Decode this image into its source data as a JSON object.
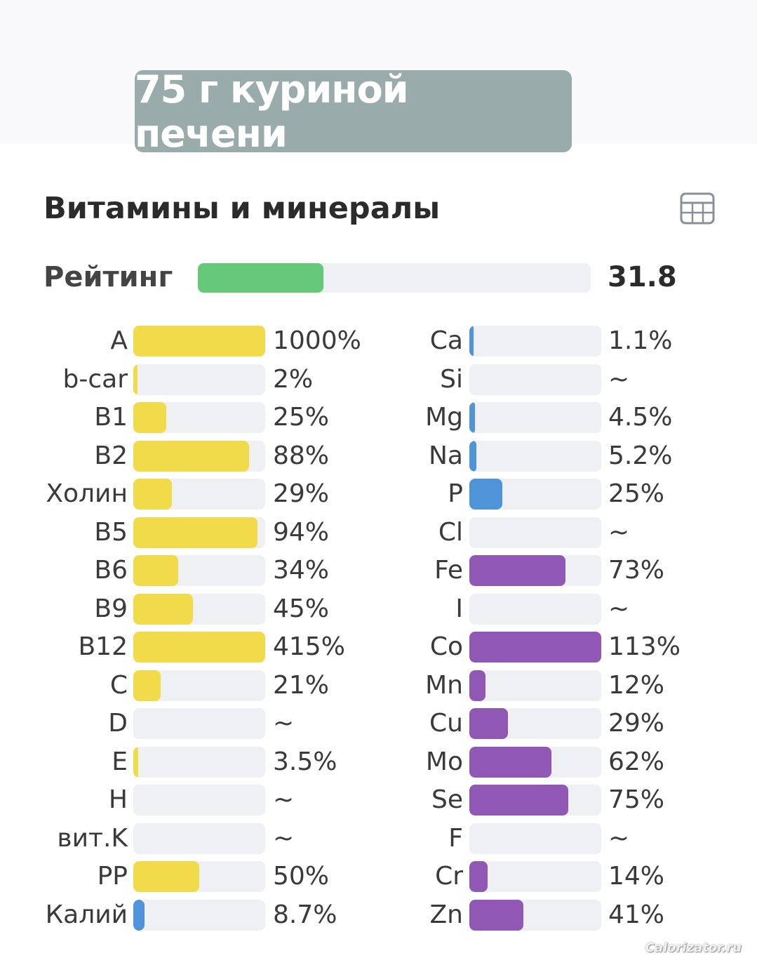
{
  "header": {
    "title": "75 г куриной печени"
  },
  "section": {
    "title": "Витамины и минералы",
    "view_icon": "table-grid-icon"
  },
  "rating": {
    "label": "Рейтинг",
    "value": 31.8,
    "value_text": "31.8",
    "fraction": 0.32,
    "color": "#66c97a"
  },
  "colors": {
    "vitamin": "#f1db4a",
    "mineral_blue": "#4f94d8",
    "mineral_purple": "#9157b4",
    "track": "#eef0f3"
  },
  "watermark": "Calorizator.ru",
  "chart_data": {
    "type": "bar",
    "title": "Витамины и минералы",
    "series": [
      {
        "group": "vitamins",
        "items": [
          {
            "name": "A",
            "percent": 1000,
            "label": "1000%",
            "color": "#f1db4a"
          },
          {
            "name": "b-car",
            "percent": 2,
            "label": "2%",
            "color": "#f1db4a"
          },
          {
            "name": "B1",
            "percent": 25,
            "label": "25%",
            "color": "#f1db4a"
          },
          {
            "name": "B2",
            "percent": 88,
            "label": "88%",
            "color": "#f1db4a"
          },
          {
            "name": "Холин",
            "percent": 29,
            "label": "29%",
            "color": "#f1db4a"
          },
          {
            "name": "B5",
            "percent": 94,
            "label": "94%",
            "color": "#f1db4a"
          },
          {
            "name": "B6",
            "percent": 34,
            "label": "34%",
            "color": "#f1db4a"
          },
          {
            "name": "B9",
            "percent": 45,
            "label": "45%",
            "color": "#f1db4a"
          },
          {
            "name": "B12",
            "percent": 415,
            "label": "415%",
            "color": "#f1db4a"
          },
          {
            "name": "C",
            "percent": 21,
            "label": "21%",
            "color": "#f1db4a"
          },
          {
            "name": "D",
            "percent": null,
            "label": "~",
            "color": "#f1db4a"
          },
          {
            "name": "E",
            "percent": 3.5,
            "label": "3.5%",
            "color": "#f1db4a"
          },
          {
            "name": "H",
            "percent": null,
            "label": "~",
            "color": "#f1db4a"
          },
          {
            "name": "вит.K",
            "percent": null,
            "label": "~",
            "color": "#f1db4a"
          },
          {
            "name": "PP",
            "percent": 50,
            "label": "50%",
            "color": "#f1db4a"
          },
          {
            "name": "Калий",
            "percent": 8.7,
            "label": "8.7%",
            "color": "#4f94d8"
          }
        ]
      },
      {
        "group": "minerals",
        "items": [
          {
            "name": "Ca",
            "percent": 1.1,
            "label": "1.1%",
            "color": "#4f94d8"
          },
          {
            "name": "Si",
            "percent": null,
            "label": "~",
            "color": "#4f94d8"
          },
          {
            "name": "Mg",
            "percent": 4.5,
            "label": "4.5%",
            "color": "#4f94d8"
          },
          {
            "name": "Na",
            "percent": 5.2,
            "label": "5.2%",
            "color": "#4f94d8"
          },
          {
            "name": "P",
            "percent": 25,
            "label": "25%",
            "color": "#4f94d8"
          },
          {
            "name": "Cl",
            "percent": null,
            "label": "~",
            "color": "#4f94d8"
          },
          {
            "name": "Fe",
            "percent": 73,
            "label": "73%",
            "color": "#9157b4"
          },
          {
            "name": "I",
            "percent": null,
            "label": "~",
            "color": "#9157b4"
          },
          {
            "name": "Co",
            "percent": 113,
            "label": "113%",
            "color": "#9157b4"
          },
          {
            "name": "Mn",
            "percent": 12,
            "label": "12%",
            "color": "#9157b4"
          },
          {
            "name": "Cu",
            "percent": 29,
            "label": "29%",
            "color": "#9157b4"
          },
          {
            "name": "Mo",
            "percent": 62,
            "label": "62%",
            "color": "#9157b4"
          },
          {
            "name": "Se",
            "percent": 75,
            "label": "75%",
            "color": "#9157b4"
          },
          {
            "name": "F",
            "percent": null,
            "label": "~",
            "color": "#9157b4"
          },
          {
            "name": "Cr",
            "percent": 14,
            "label": "14%",
            "color": "#9157b4"
          },
          {
            "name": "Zn",
            "percent": 41,
            "label": "41%",
            "color": "#9157b4"
          }
        ]
      }
    ],
    "ylim": [
      0,
      100
    ]
  }
}
